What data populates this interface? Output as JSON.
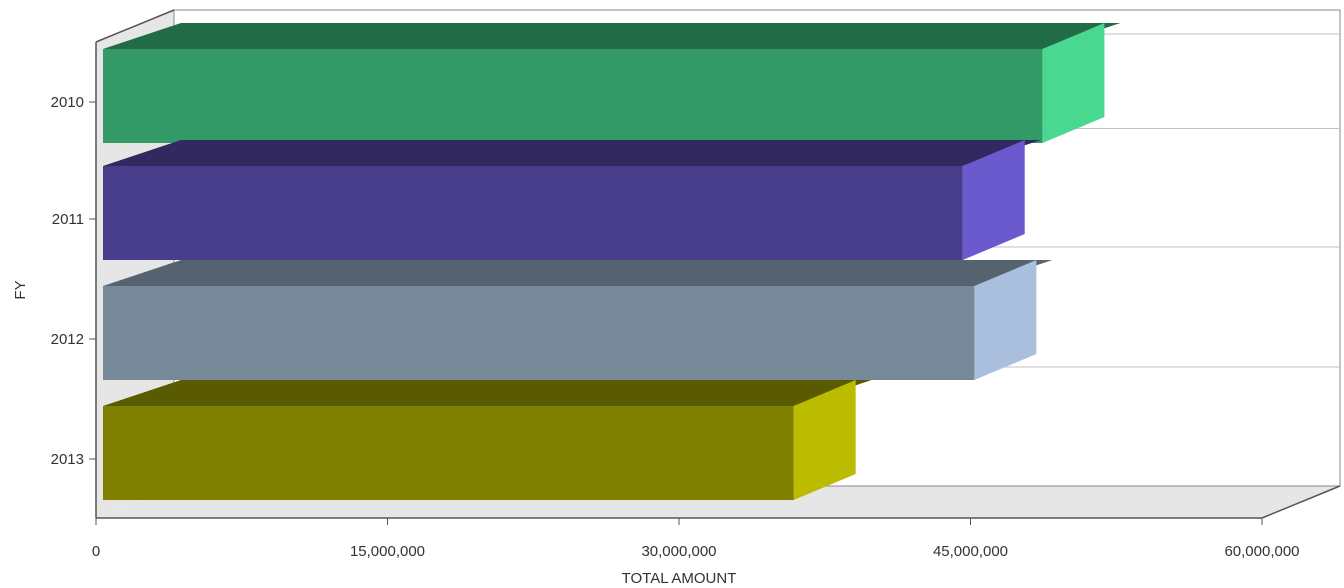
{
  "chart_data": {
    "type": "bar",
    "orientation": "horizontal",
    "style": "3d",
    "title": "",
    "xlabel": "TOTAL AMOUNT",
    "ylabel": "FY",
    "categories": [
      "2010",
      "2011",
      "2012",
      "2013"
    ],
    "values": [
      48700000,
      44600000,
      45200000,
      35900000
    ],
    "xlim": [
      0,
      60000000
    ],
    "x_ticks": [
      0,
      15000000,
      30000000,
      45000000,
      60000000
    ],
    "x_tick_labels": [
      "0",
      "15,000,000",
      "30,000,000",
      "45,000,000",
      "60,000,000"
    ],
    "grid": true,
    "legend": "none",
    "colors": [
      {
        "front": "#339966",
        "top": "#226b47",
        "side": "#48d890"
      },
      {
        "front": "#483d8b",
        "top": "#312960",
        "side": "#6a5acd"
      },
      {
        "front": "#778899",
        "top": "#556370",
        "side": "#aabfdd"
      },
      {
        "front": "#808000",
        "top": "#5a5a00",
        "side": "#bbbb00"
      }
    ]
  }
}
